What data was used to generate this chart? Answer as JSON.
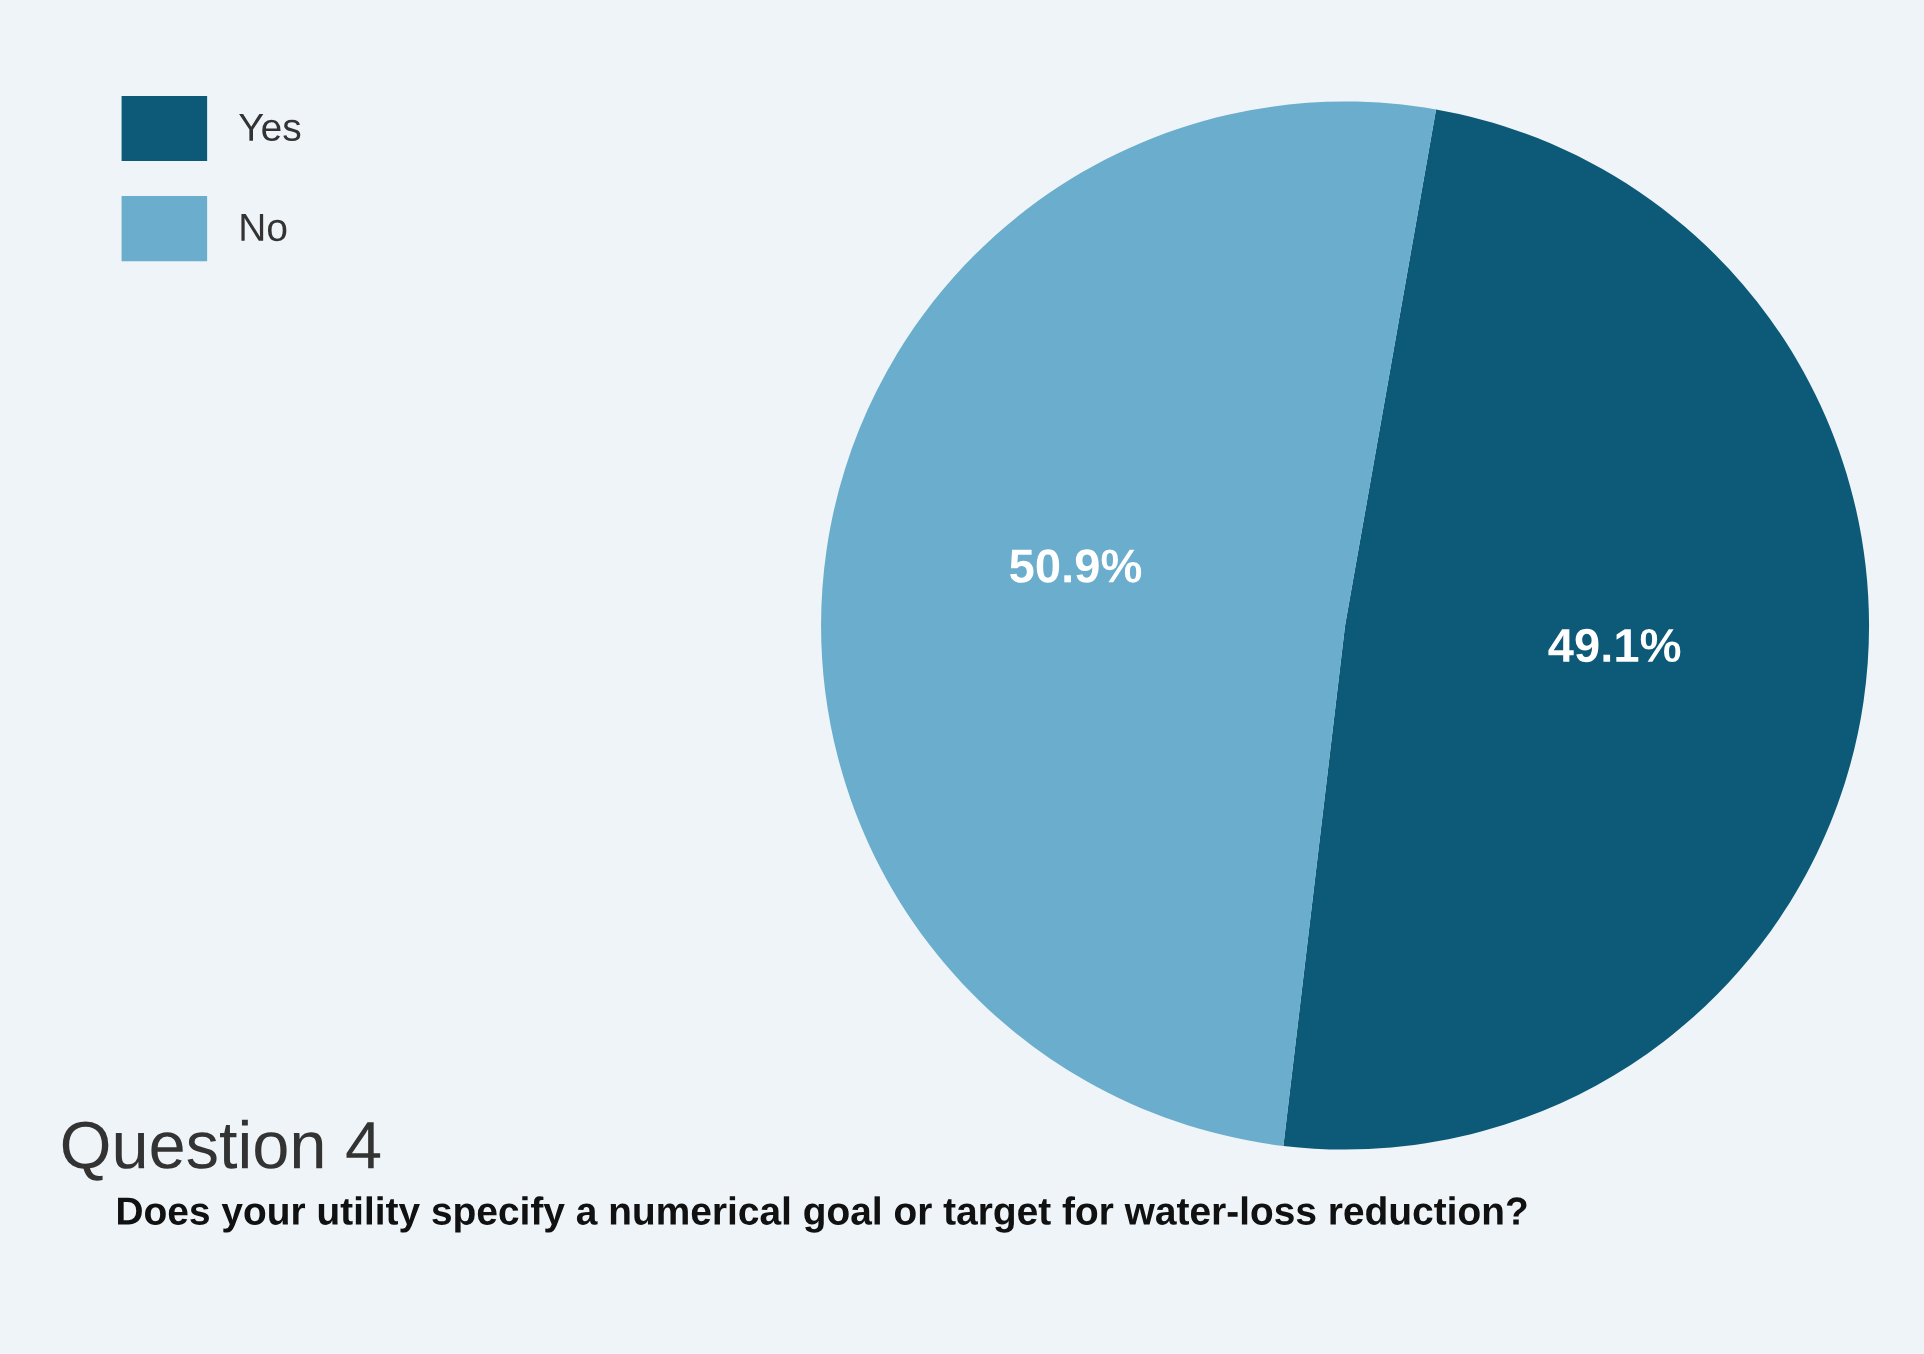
{
  "chart_data": {
    "type": "pie",
    "title": "Question 4",
    "subtitle": "Does your utility specify a numerical goal or target for water-loss reduction?",
    "categories": [
      "Yes",
      "No"
    ],
    "values": [
      49.1,
      50.9
    ],
    "colors": [
      "#0c5a78",
      "#6aadcd"
    ],
    "value_labels": [
      "49.1%",
      "50.9%"
    ],
    "legend": "top left"
  }
}
